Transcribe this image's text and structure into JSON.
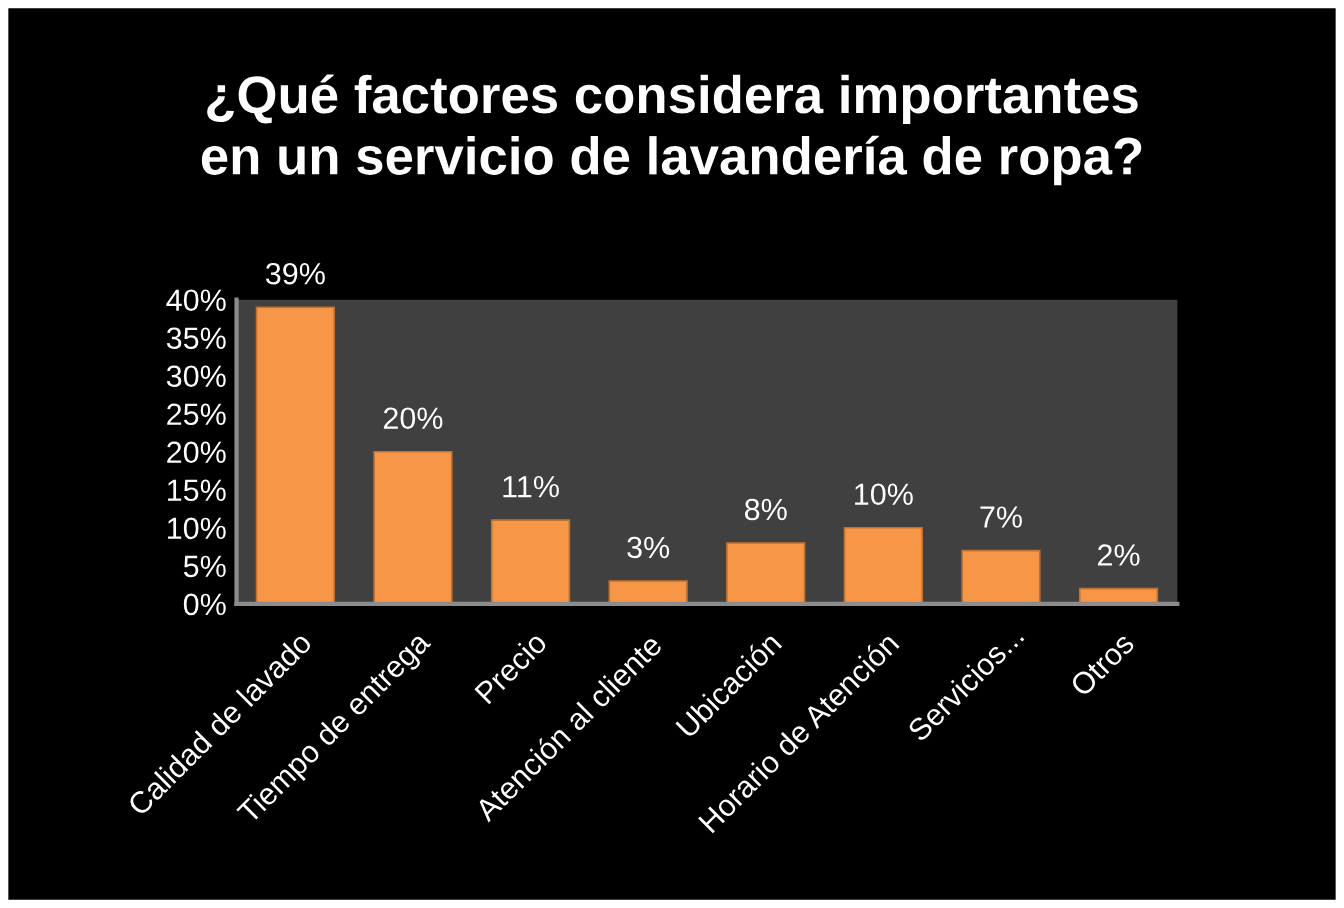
{
  "chart_data": {
    "type": "bar",
    "title": "¿Qué factores considera importantes\nen un servicio de lavandería de ropa?",
    "categories": [
      "Calidad de lavado",
      "Tiempo de entrega",
      "Precio",
      "Atención al cliente",
      "Ubicación",
      "Horario de Atención",
      "Servicios...",
      "Otros"
    ],
    "values": [
      39,
      20,
      11,
      3,
      8,
      10,
      7,
      2
    ],
    "color": "#f79646",
    "value_labels": [
      "39%",
      "20%",
      "11%",
      "3%",
      "8%",
      "10%",
      "7%",
      "2%"
    ],
    "ylim": [
      0,
      40
    ],
    "yticks": [
      {
        "value": 0,
        "label": "0%"
      },
      {
        "value": 5,
        "label": "5%"
      },
      {
        "value": 10,
        "label": "10%"
      },
      {
        "value": 15,
        "label": "15%"
      },
      {
        "value": 20,
        "label": "20%"
      },
      {
        "value": 25,
        "label": "25%"
      },
      {
        "value": 30,
        "label": "30%"
      },
      {
        "value": 35,
        "label": "35%"
      },
      {
        "value": 40,
        "label": "40%"
      }
    ]
  }
}
